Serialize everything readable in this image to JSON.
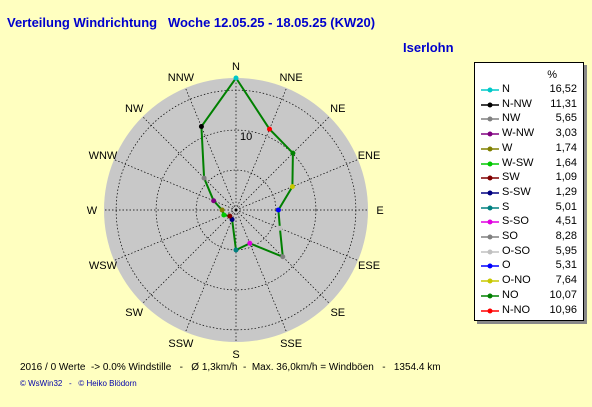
{
  "header": {
    "title": "Verteilung Windrichtung   Woche 12.05.25 - 18.05.25 (KW20)",
    "location": "Iserlohn"
  },
  "footer": {
    "stats": "2016 / 0 Werte  -> 0.0% Windstille   -   Ø 1,3km/h  -  Max. 36,0km/h = Windböen   -   1354.4 km",
    "copyright": "© WsWin32   -   © Heiko Blödorn"
  },
  "legend": {
    "unit_header": "%"
  },
  "colors": {
    "background": "#ffffc0",
    "title": "#0000cc",
    "disc": "#c8c8c8",
    "polygon": "#008000",
    "grid": "#000000"
  },
  "chart_data": {
    "type": "radar",
    "directions": [
      "N",
      "NNE",
      "NE",
      "ENE",
      "E",
      "ESE",
      "SE",
      "SSE",
      "S",
      "SSW",
      "SW",
      "WSW",
      "W",
      "WNW",
      "NW",
      "NNW"
    ],
    "ring_labels": [
      "10"
    ],
    "rmax": 16.52,
    "ring_step": 5,
    "grid": true,
    "legend_position": "right",
    "series": [
      {
        "label": "N",
        "value": 16.52,
        "color": "#00c8c8"
      },
      {
        "label": "N-NW",
        "value": 11.31,
        "color": "#000000"
      },
      {
        "label": "NW",
        "value": 5.65,
        "color": "#808080"
      },
      {
        "label": "W-NW",
        "value": 3.03,
        "color": "#800080"
      },
      {
        "label": "W",
        "value": 1.74,
        "color": "#808000"
      },
      {
        "label": "W-SW",
        "value": 1.64,
        "color": "#00c800"
      },
      {
        "label": "SW",
        "value": 1.09,
        "color": "#800000"
      },
      {
        "label": "S-SW",
        "value": 1.29,
        "color": "#000080"
      },
      {
        "label": "S",
        "value": 5.01,
        "color": "#008080"
      },
      {
        "label": "S-SO",
        "value": 4.51,
        "color": "#e000e0"
      },
      {
        "label": "SO",
        "value": 8.28,
        "color": "#808080"
      },
      {
        "label": "O-SO",
        "value": 5.95,
        "color": "#c0c0c0"
      },
      {
        "label": "O",
        "value": 5.31,
        "color": "#0000ff"
      },
      {
        "label": "O-NO",
        "value": 7.64,
        "color": "#c8c800"
      },
      {
        "label": "NO",
        "value": 10.07,
        "color": "#008000"
      },
      {
        "label": "N-NO",
        "value": 10.96,
        "color": "#ff0000"
      }
    ],
    "polygon_order": [
      "N",
      "N-NO",
      "NO",
      "O-NO",
      "O",
      "O-SO",
      "SO",
      "S-SO",
      "S",
      "S-SW",
      "SW",
      "W-SW",
      "W",
      "W-NW",
      "NW",
      "N-NW"
    ]
  }
}
